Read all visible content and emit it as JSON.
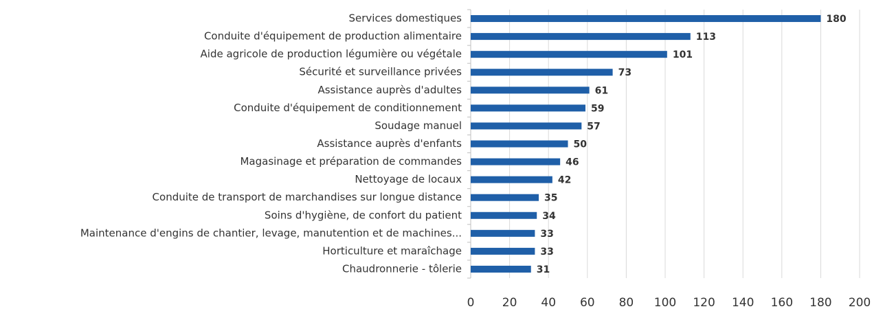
{
  "chart_data": {
    "type": "bar",
    "orientation": "horizontal",
    "categories": [
      "Services domestiques",
      "Conduite d'équipement de production alimentaire",
      "Aide agricole de production légumière ou végétale",
      "Sécurité et surveillance privées",
      "Assistance auprès d'adultes",
      "Conduite d'équipement de conditionnement",
      "Soudage manuel",
      "Assistance auprès d'enfants",
      "Magasinage et préparation de commandes",
      "Nettoyage de locaux",
      "Conduite de transport de marchandises sur longue distance",
      "Soins d'hygiène, de confort du patient",
      "Maintenance d'engins de chantier, levage, manutention et de machines...",
      "Horticulture et maraîchage",
      "Chaudronnerie - tôlerie"
    ],
    "values": [
      180,
      113,
      101,
      73,
      61,
      59,
      57,
      50,
      46,
      42,
      35,
      34,
      33,
      33,
      31
    ],
    "color": "#1f5fa8",
    "xlim": [
      0,
      200
    ],
    "xticks": [
      0,
      20,
      40,
      60,
      80,
      100,
      120,
      140,
      160,
      180,
      200
    ],
    "grid": true
  }
}
